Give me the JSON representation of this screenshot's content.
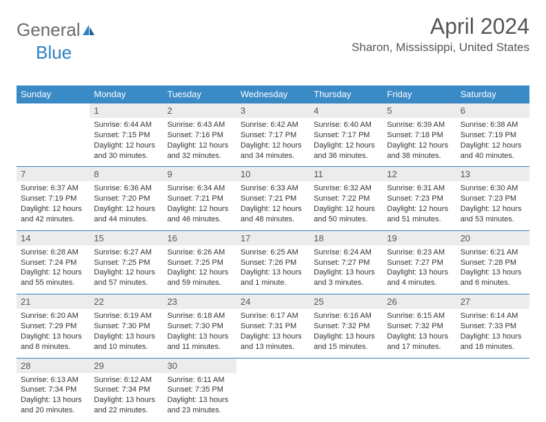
{
  "logo": {
    "part1": "General",
    "part2": "Blue"
  },
  "title": "April 2024",
  "location": "Sharon, Mississippi, United States",
  "headerColor": "#3a8ac6",
  "dayHeaderBg": "#ececec",
  "borderColor": "#2f7fc1",
  "weekdays": [
    "Sunday",
    "Monday",
    "Tuesday",
    "Wednesday",
    "Thursday",
    "Friday",
    "Saturday"
  ],
  "weeks": [
    [
      null,
      {
        "n": "1",
        "sr": "Sunrise: 6:44 AM",
        "ss": "Sunset: 7:15 PM",
        "dl": "Daylight: 12 hours and 30 minutes."
      },
      {
        "n": "2",
        "sr": "Sunrise: 6:43 AM",
        "ss": "Sunset: 7:16 PM",
        "dl": "Daylight: 12 hours and 32 minutes."
      },
      {
        "n": "3",
        "sr": "Sunrise: 6:42 AM",
        "ss": "Sunset: 7:17 PM",
        "dl": "Daylight: 12 hours and 34 minutes."
      },
      {
        "n": "4",
        "sr": "Sunrise: 6:40 AM",
        "ss": "Sunset: 7:17 PM",
        "dl": "Daylight: 12 hours and 36 minutes."
      },
      {
        "n": "5",
        "sr": "Sunrise: 6:39 AM",
        "ss": "Sunset: 7:18 PM",
        "dl": "Daylight: 12 hours and 38 minutes."
      },
      {
        "n": "6",
        "sr": "Sunrise: 6:38 AM",
        "ss": "Sunset: 7:19 PM",
        "dl": "Daylight: 12 hours and 40 minutes."
      }
    ],
    [
      {
        "n": "7",
        "sr": "Sunrise: 6:37 AM",
        "ss": "Sunset: 7:19 PM",
        "dl": "Daylight: 12 hours and 42 minutes."
      },
      {
        "n": "8",
        "sr": "Sunrise: 6:36 AM",
        "ss": "Sunset: 7:20 PM",
        "dl": "Daylight: 12 hours and 44 minutes."
      },
      {
        "n": "9",
        "sr": "Sunrise: 6:34 AM",
        "ss": "Sunset: 7:21 PM",
        "dl": "Daylight: 12 hours and 46 minutes."
      },
      {
        "n": "10",
        "sr": "Sunrise: 6:33 AM",
        "ss": "Sunset: 7:21 PM",
        "dl": "Daylight: 12 hours and 48 minutes."
      },
      {
        "n": "11",
        "sr": "Sunrise: 6:32 AM",
        "ss": "Sunset: 7:22 PM",
        "dl": "Daylight: 12 hours and 50 minutes."
      },
      {
        "n": "12",
        "sr": "Sunrise: 6:31 AM",
        "ss": "Sunset: 7:23 PM",
        "dl": "Daylight: 12 hours and 51 minutes."
      },
      {
        "n": "13",
        "sr": "Sunrise: 6:30 AM",
        "ss": "Sunset: 7:23 PM",
        "dl": "Daylight: 12 hours and 53 minutes."
      }
    ],
    [
      {
        "n": "14",
        "sr": "Sunrise: 6:28 AM",
        "ss": "Sunset: 7:24 PM",
        "dl": "Daylight: 12 hours and 55 minutes."
      },
      {
        "n": "15",
        "sr": "Sunrise: 6:27 AM",
        "ss": "Sunset: 7:25 PM",
        "dl": "Daylight: 12 hours and 57 minutes."
      },
      {
        "n": "16",
        "sr": "Sunrise: 6:26 AM",
        "ss": "Sunset: 7:25 PM",
        "dl": "Daylight: 12 hours and 59 minutes."
      },
      {
        "n": "17",
        "sr": "Sunrise: 6:25 AM",
        "ss": "Sunset: 7:26 PM",
        "dl": "Daylight: 13 hours and 1 minute."
      },
      {
        "n": "18",
        "sr": "Sunrise: 6:24 AM",
        "ss": "Sunset: 7:27 PM",
        "dl": "Daylight: 13 hours and 3 minutes."
      },
      {
        "n": "19",
        "sr": "Sunrise: 6:23 AM",
        "ss": "Sunset: 7:27 PM",
        "dl": "Daylight: 13 hours and 4 minutes."
      },
      {
        "n": "20",
        "sr": "Sunrise: 6:21 AM",
        "ss": "Sunset: 7:28 PM",
        "dl": "Daylight: 13 hours and 6 minutes."
      }
    ],
    [
      {
        "n": "21",
        "sr": "Sunrise: 6:20 AM",
        "ss": "Sunset: 7:29 PM",
        "dl": "Daylight: 13 hours and 8 minutes."
      },
      {
        "n": "22",
        "sr": "Sunrise: 6:19 AM",
        "ss": "Sunset: 7:30 PM",
        "dl": "Daylight: 13 hours and 10 minutes."
      },
      {
        "n": "23",
        "sr": "Sunrise: 6:18 AM",
        "ss": "Sunset: 7:30 PM",
        "dl": "Daylight: 13 hours and 11 minutes."
      },
      {
        "n": "24",
        "sr": "Sunrise: 6:17 AM",
        "ss": "Sunset: 7:31 PM",
        "dl": "Daylight: 13 hours and 13 minutes."
      },
      {
        "n": "25",
        "sr": "Sunrise: 6:16 AM",
        "ss": "Sunset: 7:32 PM",
        "dl": "Daylight: 13 hours and 15 minutes."
      },
      {
        "n": "26",
        "sr": "Sunrise: 6:15 AM",
        "ss": "Sunset: 7:32 PM",
        "dl": "Daylight: 13 hours and 17 minutes."
      },
      {
        "n": "27",
        "sr": "Sunrise: 6:14 AM",
        "ss": "Sunset: 7:33 PM",
        "dl": "Daylight: 13 hours and 18 minutes."
      }
    ],
    [
      {
        "n": "28",
        "sr": "Sunrise: 6:13 AM",
        "ss": "Sunset: 7:34 PM",
        "dl": "Daylight: 13 hours and 20 minutes."
      },
      {
        "n": "29",
        "sr": "Sunrise: 6:12 AM",
        "ss": "Sunset: 7:34 PM",
        "dl": "Daylight: 13 hours and 22 minutes."
      },
      {
        "n": "30",
        "sr": "Sunrise: 6:11 AM",
        "ss": "Sunset: 7:35 PM",
        "dl": "Daylight: 13 hours and 23 minutes."
      },
      null,
      null,
      null,
      null
    ]
  ]
}
